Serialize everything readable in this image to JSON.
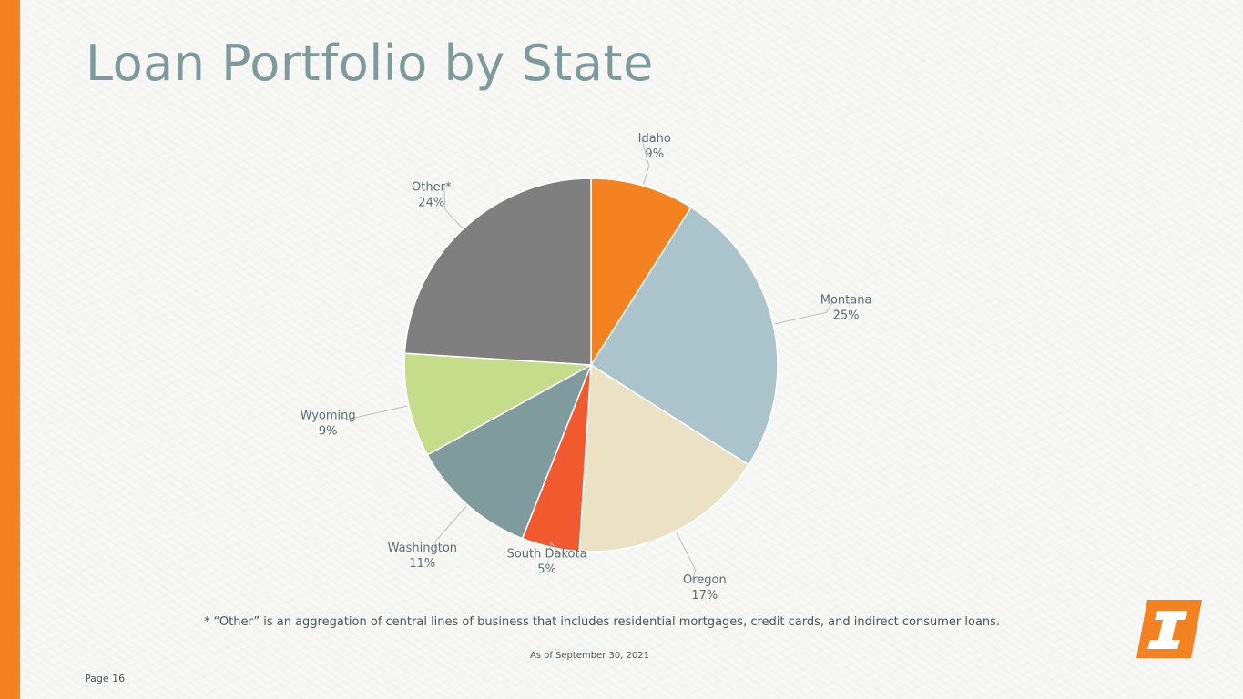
{
  "slide": {
    "title": "Loan Portfolio by State",
    "footnote": "* “Other” is an aggregation of central lines of business that includes residential mortgages, credit cards, and indirect consumer loans.",
    "as_of": "As of September 30, 2021",
    "page_label": "Page 16",
    "accent_color": "#f58220",
    "logo_icon": "company-logo-icon"
  },
  "chart_data": {
    "type": "pie",
    "title": "",
    "start_angle_deg": 0,
    "direction": "clockwise",
    "slices": [
      {
        "label": "Idaho",
        "value_label": "9%",
        "value": 9,
        "color": "#f58220"
      },
      {
        "label": "Montana",
        "value_label": "25%",
        "value": 25,
        "color": "#abc4cb"
      },
      {
        "label": "Oregon",
        "value_label": "17%",
        "value": 17,
        "color": "#ebe2c6"
      },
      {
        "label": "South Dakota",
        "value_label": "5%",
        "value": 5,
        "color": "#f05a2e"
      },
      {
        "label": "Washington",
        "value_label": "11%",
        "value": 11,
        "color": "#809b9d"
      },
      {
        "label": "Wyoming",
        "value_label": "9%",
        "value": 9,
        "color": "#c5dc8a"
      },
      {
        "label": "Other*",
        "value_label": "24%",
        "value": 24,
        "color": "#7f7f7f"
      }
    ]
  }
}
